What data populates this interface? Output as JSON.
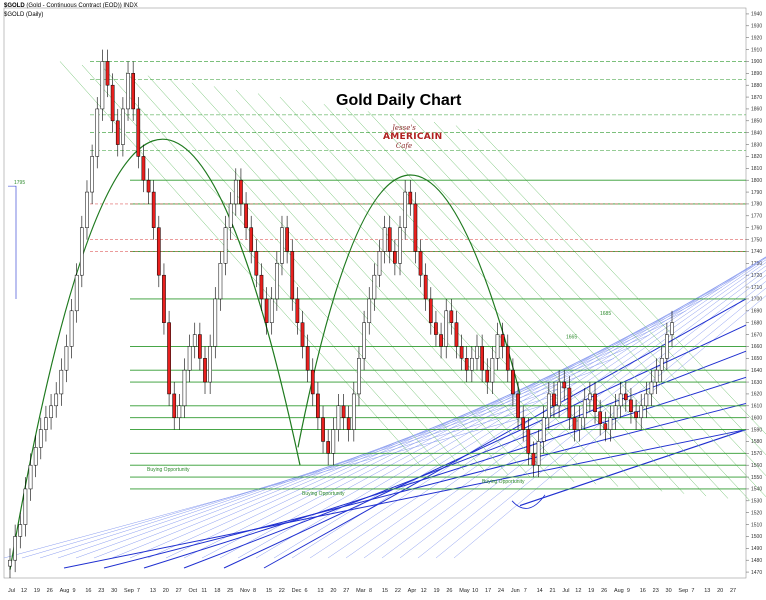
{
  "header": {
    "symbol": "$GOLD",
    "description": "(Gold - Continuous Contract (EOD)) INDX",
    "sub": "$GOLD (Daily)"
  },
  "title": "Gold Daily Chart",
  "logo": {
    "line1": "Jesse's",
    "line2": "AMERICAIN",
    "line3": "Cafe"
  },
  "colors": {
    "up_candle": "#ffffff",
    "down_candle": "#e8201e",
    "arc": "#1f7a1f",
    "support_green": "#2e9a2e",
    "resistance_red": "#e06060",
    "trend_blue": "#1f2fd0",
    "fan_lightblue": "#8a9cf0",
    "fan_green": "#6cc06c"
  },
  "chart_data": {
    "type": "candlestick",
    "ylim": [
      1465,
      1945
    ],
    "y_ticks": [
      1470,
      1480,
      1490,
      1500,
      1510,
      1520,
      1530,
      1540,
      1550,
      1560,
      1570,
      1580,
      1590,
      1600,
      1610,
      1620,
      1630,
      1640,
      1650,
      1660,
      1670,
      1680,
      1690,
      1700,
      1710,
      1720,
      1730,
      1740,
      1750,
      1760,
      1770,
      1780,
      1790,
      1800,
      1810,
      1820,
      1830,
      1840,
      1850,
      1860,
      1870,
      1880,
      1890,
      1900,
      1910,
      1920,
      1930,
      1940
    ],
    "x_ticks": [
      "Jul",
      "12",
      "19",
      "26",
      "Aug",
      "9",
      "16",
      "23",
      "30",
      "Sep",
      "7",
      "13",
      "20",
      "27",
      "Oct",
      "11",
      "18",
      "25",
      "Nov",
      "8",
      "15",
      "22",
      "Dec",
      "6",
      "13",
      "20",
      "27",
      "Mar",
      "8",
      "15",
      "22",
      "Apr",
      "12",
      "19",
      "26",
      "May",
      "10",
      "17",
      "24",
      "Jun",
      "7",
      "14",
      "21",
      "Jul",
      "12",
      "19",
      "26",
      "Aug",
      "9",
      "16",
      "23",
      "30",
      "Sep",
      "7",
      "13",
      "20",
      "27"
    ],
    "horizontal_levels": [
      1795,
      1685,
      1665
    ],
    "annotations": [
      "1795",
      "1685",
      "1665",
      "Buying Opportunity",
      "Buying Opportunity",
      "Buying Opportunity"
    ],
    "closes": [
      1480,
      1500,
      1510,
      1540,
      1560,
      1575,
      1590,
      1600,
      1610,
      1620,
      1640,
      1660,
      1690,
      1720,
      1760,
      1790,
      1820,
      1860,
      1900,
      1880,
      1850,
      1830,
      1860,
      1890,
      1860,
      1820,
      1800,
      1790,
      1760,
      1720,
      1680,
      1620,
      1600,
      1610,
      1640,
      1660,
      1670,
      1650,
      1630,
      1660,
      1700,
      1730,
      1760,
      1780,
      1800,
      1780,
      1760,
      1740,
      1720,
      1700,
      1680,
      1700,
      1730,
      1760,
      1740,
      1700,
      1680,
      1660,
      1640,
      1620,
      1600,
      1580,
      1570,
      1590,
      1610,
      1600,
      1590,
      1620,
      1650,
      1680,
      1700,
      1720,
      1740,
      1760,
      1740,
      1730,
      1760,
      1790,
      1780,
      1740,
      1720,
      1700,
      1680,
      1670,
      1660,
      1690,
      1680,
      1660,
      1650,
      1640,
      1650,
      1660,
      1640,
      1630,
      1650,
      1670,
      1660,
      1640,
      1620,
      1600,
      1590,
      1570,
      1560,
      1580,
      1600,
      1620,
      1610,
      1630,
      1625,
      1600,
      1590,
      1600,
      1615,
      1620,
      1605,
      1595,
      1590,
      1600,
      1610,
      1620,
      1615,
      1605,
      1600,
      1610,
      1620,
      1630,
      1640,
      1650,
      1670,
      1680
    ]
  }
}
